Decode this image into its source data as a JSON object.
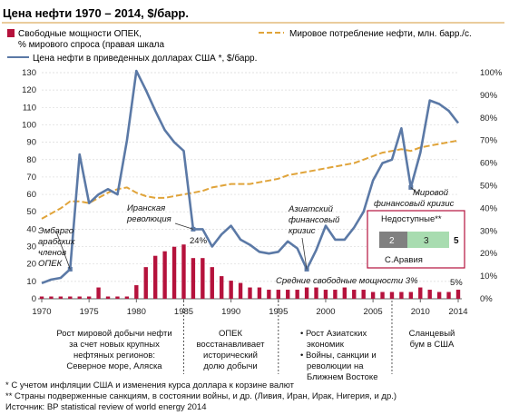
{
  "title": "Цена нефти 1970 – 2014, $/барр.",
  "legend": {
    "capacity": [
      "Свободные мощности ОПЕК,",
      "% мирового спроса (правая шкала"
    ],
    "consumption": "Мировое потребление нефти, млн. барр./с.",
    "price": "Цена нефти в приведенных долларах США *, $/барр."
  },
  "annotations": {
    "embargo": [
      "Эмбарго",
      "арабских",
      "членов",
      "ОПЕК"
    ],
    "iran": [
      "Иранская",
      "революция"
    ],
    "pct24": "24%",
    "asian": [
      "Азиатский",
      "финансовый",
      "кризис"
    ],
    "global": [
      "Мировой",
      "финансовый кризис"
    ],
    "avg_capacity": "Средние свободные мощности 3%",
    "pct5": "5%",
    "inset_title": "Недоступные**",
    "inset_v1": "2",
    "inset_v2": "3",
    "inset_v3": "5",
    "inset_label": "С.Аравия"
  },
  "periods": [
    [
      "Рост мировой добычи нефти",
      "за счет новых крупных",
      "нефтяных регионов:",
      "Северное море, Аляска"
    ],
    [
      "ОПЕК",
      "восстанавливает",
      "исторический",
      "долю добычи"
    ],
    [
      "• Рост Азиатских",
      "экономик",
      "• Войны, санкции и",
      "революции на",
      "Ближнем Востоке"
    ],
    [
      "Сланцевый",
      "бум в США"
    ]
  ],
  "footnotes": [
    "* С учетом инфляции США и изменения курса доллара к корзине валют",
    "** Страны подверженные санкциям, в состоянии войны, и др. (Ливия, Иран, Ирак, Нигерия, и др.)",
    "Источник: BP statistical review of world energy 2014"
  ],
  "colors": {
    "capacity": "#b5123c",
    "consumption": "#e0a43a",
    "price": "#5b79a6",
    "inset_border": "#b5123c",
    "inset_grey": "#808080",
    "inset_green": "#a8dcb0"
  },
  "chart_data": {
    "type": "bar+line",
    "x": [
      1970,
      1971,
      1972,
      1973,
      1974,
      1975,
      1976,
      1977,
      1978,
      1979,
      1980,
      1981,
      1982,
      1983,
      1984,
      1985,
      1986,
      1987,
      1988,
      1989,
      1990,
      1991,
      1992,
      1993,
      1994,
      1995,
      1996,
      1997,
      1998,
      1999,
      2000,
      2001,
      2002,
      2003,
      2004,
      2005,
      2006,
      2007,
      2008,
      2009,
      2010,
      2011,
      2012,
      2013,
      2014
    ],
    "xticks": [
      1970,
      1975,
      1980,
      1985,
      1990,
      1995,
      2000,
      2005,
      2010,
      2014
    ],
    "ylim": [
      0,
      130
    ],
    "yticks": [
      0,
      10,
      20,
      30,
      40,
      50,
      60,
      70,
      80,
      90,
      100,
      110,
      120,
      130
    ],
    "y2lim": [
      0,
      100
    ],
    "y2ticks": [
      "0%",
      "10%",
      "20%",
      "30%",
      "40%",
      "50%",
      "60%",
      "70%",
      "80%",
      "90%",
      "100%"
    ],
    "series": [
      {
        "name": "Свободные мощности ОПЕК, % мирового спроса (правая шкала",
        "type": "bar",
        "axis": "right",
        "values": [
          1,
          1,
          1,
          1,
          1,
          1,
          5,
          1,
          1,
          1,
          6,
          14,
          19,
          21,
          23,
          24,
          18,
          18,
          14,
          10,
          8,
          7,
          5,
          5,
          4,
          4,
          4,
          4,
          5,
          5,
          4,
          4,
          5,
          4,
          4,
          3,
          3,
          3,
          3,
          3,
          5,
          4,
          3,
          3,
          4
        ]
      },
      {
        "name": "Мировое потребление нефти, млн. барр./с.",
        "type": "line",
        "axis": "left",
        "values": [
          46,
          49,
          52,
          56,
          56,
          55,
          58,
          61,
          63,
          64,
          61,
          59,
          58,
          58,
          59,
          60,
          61,
          62,
          64,
          65,
          66,
          66,
          66,
          67,
          68,
          69,
          71,
          72,
          73,
          74,
          75,
          76,
          77,
          78,
          80,
          82,
          84,
          85,
          86,
          85,
          87,
          88,
          89,
          90,
          91
        ]
      },
      {
        "name": "Цена нефти в приведенных долларах США *, $/барр.",
        "type": "line",
        "axis": "left",
        "values": [
          9,
          11,
          12,
          17,
          83,
          55,
          60,
          63,
          60,
          91,
          131,
          120,
          108,
          97,
          90,
          85,
          40,
          40,
          30,
          37,
          42,
          34,
          31,
          27,
          26,
          27,
          33,
          29,
          17,
          28,
          42,
          34,
          34,
          41,
          50,
          68,
          78,
          80,
          98,
          64,
          84,
          114,
          112,
          108,
          101
        ]
      }
    ]
  }
}
